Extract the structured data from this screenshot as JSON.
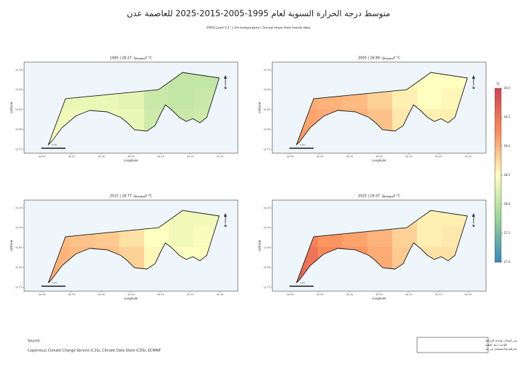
{
  "header": {
    "title": "متوسط درجة الحرارة السنوية لعام 1995-2005-2015-2025 للعاصمة عدن",
    "subtitle": "ERA5-Land 0.1° | 2m temperature | Annual mean from hourly data"
  },
  "axes": {
    "xlabel": "Longitude",
    "ylabel": "Latitude",
    "xlim": [
      44.87,
      45.23
    ],
    "ylim": [
      12.74,
      12.97
    ],
    "xticks": [
      {
        "value": 44.9,
        "label": "44.90"
      },
      44.95,
      {
        "value": 45,
        "label": "45.00"
      },
      45.05,
      {
        "value": 45.1,
        "label": "45.10"
      },
      45.15,
      {
        "value": 45.2,
        "label": "45.20"
      }
    ],
    "yticks": [
      12.75,
      {
        "value": 12.8,
        "label": "12.80"
      },
      12.85,
      {
        "value": 12.9,
        "label": "12.90"
      },
      12.95
    ],
    "north": "N",
    "scale_label": "5 km"
  },
  "panels": [
    {
      "title": "1995  |  المتوسط: 28.27 °C",
      "cells": [
        [
          28.3,
          28.3,
          28.3,
          28.25,
          28.1,
          28.05,
          28.05
        ],
        [
          28.35,
          28.35,
          28.35,
          28.3,
          28.1,
          28.05,
          28.1
        ],
        [
          28.4,
          28.4,
          28.4,
          28.35,
          28.15,
          28.1,
          28.15
        ],
        [
          28.45,
          28.45,
          28.4,
          28.35,
          28.2,
          28.15,
          28.2
        ]
      ]
    },
    {
      "title": "2005  |  المتوسط: 28.89 °C",
      "cells": [
        [
          28.95,
          28.9,
          28.85,
          28.7,
          28.55,
          28.5,
          28.5
        ],
        [
          29.05,
          29,
          28.95,
          28.8,
          28.6,
          28.5,
          28.55
        ],
        [
          29.1,
          29.05,
          29,
          28.9,
          28.65,
          28.6,
          28.6
        ],
        [
          29.15,
          29.1,
          29.05,
          28.95,
          28.7,
          28.65,
          28.65
        ]
      ]
    },
    {
      "title": "2015  |  المتوسط: 28.77 °C",
      "cells": [
        [
          28.85,
          28.8,
          28.75,
          28.6,
          28.45,
          28.4,
          28.4
        ],
        [
          28.95,
          28.9,
          28.85,
          28.7,
          28.5,
          28.4,
          28.45
        ],
        [
          29,
          28.95,
          28.9,
          28.8,
          28.55,
          28.5,
          28.5
        ],
        [
          29.05,
          29,
          28.95,
          28.85,
          28.6,
          28.55,
          28.55
        ]
      ]
    },
    {
      "title": "2025  |  المتوسط: 29.07 °C",
      "cells": [
        [
          29.2,
          29.1,
          29,
          28.9,
          28.75,
          28.6,
          28.6
        ],
        [
          29.35,
          29.2,
          29.1,
          29,
          28.8,
          28.6,
          28.65
        ],
        [
          29.5,
          29.3,
          29.2,
          29.05,
          28.85,
          28.7,
          28.7
        ],
        [
          29.6,
          29.4,
          29.25,
          29.1,
          28.9,
          28.75,
          28.75
        ]
      ]
    }
  ],
  "colorbar": {
    "label": "°C",
    "lim": [
      27,
      30
    ],
    "ticks": [
      {
        "value": 27,
        "label": "27.0"
      },
      27.5,
      {
        "value": 28,
        "label": "28.0"
      },
      28.5,
      {
        "value": 29,
        "label": "29.0"
      },
      29.5,
      {
        "value": 30,
        "label": "30.0"
      }
    ],
    "colors": [
      "#3288bd",
      "#99d594",
      "#ffffbf",
      "#fc8d59",
      "#d53e4f"
    ]
  },
  "footer": {
    "source_label": "Source:",
    "source": "Copernicus Climate Change Service (C3S), Climate Data Store (CDS), ECMWF",
    "credit": [
      "مصدر البيانات وإعداد الخرائط",
      "الباحث/ نبيل الفقيه",
      "مختص بعلم معلومات جغرافية والاستشعار عن بعد"
    ]
  }
}
